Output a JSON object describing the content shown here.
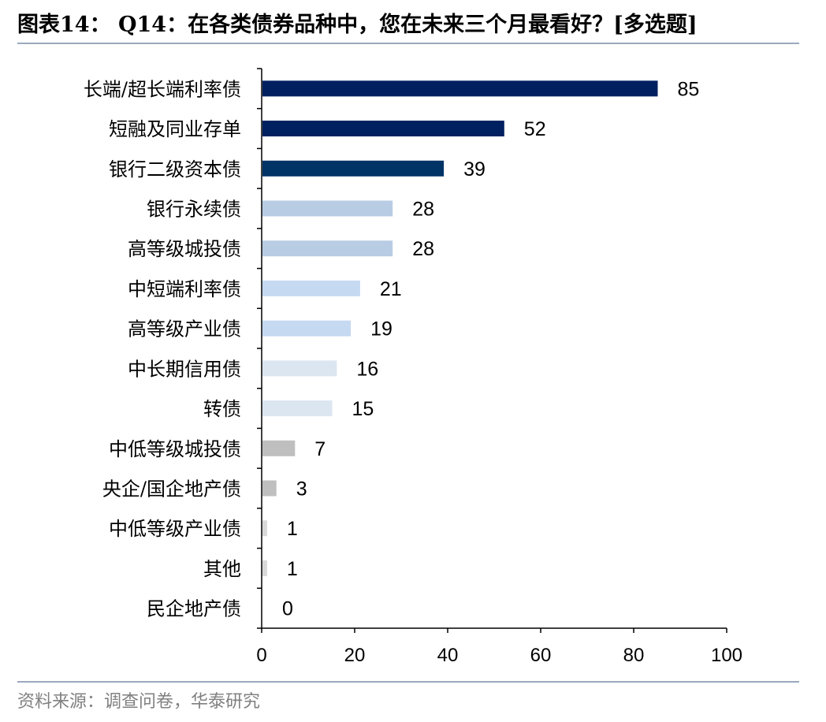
{
  "title": "图表14： Q14：在各类债券品种中，您在未来三个月最看好？[多选题]",
  "source": "资料来源：调查问卷，华泰研究",
  "chart_data": {
    "type": "bar",
    "orientation": "horizontal",
    "categories": [
      "长端/超长端利率债",
      "短融及同业存单",
      "银行二级资本债",
      "银行永续债",
      "高等级城投债",
      "中短端利率债",
      "高等级产业债",
      "中长期信用债",
      "转债",
      "中低等级城投债",
      "央企/国企地产债",
      "中低等级产业债",
      "其他",
      "民企地产债"
    ],
    "values": [
      85,
      52,
      39,
      28,
      28,
      21,
      19,
      16,
      15,
      7,
      3,
      1,
      1,
      0
    ],
    "colors": [
      "#002060",
      "#002060",
      "#003366",
      "#b8cce4",
      "#b8cce4",
      "#c5d9f1",
      "#c5d9f1",
      "#dce6f1",
      "#dce6f1",
      "#bfbfbf",
      "#bfbfbf",
      "#d9d9d9",
      "#d9d9d9",
      "#d9d9d9"
    ],
    "xlim": [
      0,
      100
    ],
    "xticks": [
      0,
      20,
      40,
      60,
      80,
      100
    ],
    "xlabel": "",
    "ylabel": "",
    "grid": false,
    "legend": "none"
  }
}
